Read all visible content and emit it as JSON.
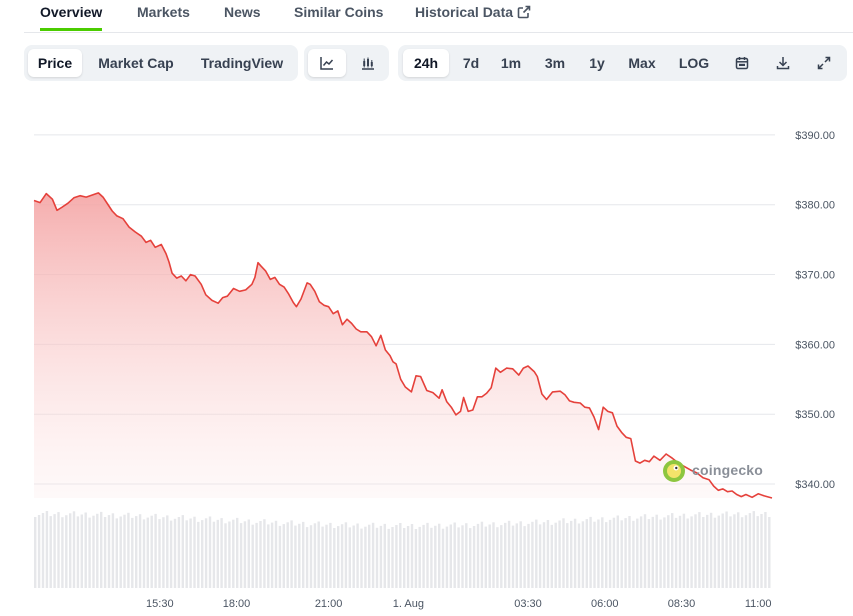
{
  "tabs": [
    {
      "label": "Overview",
      "active": true
    },
    {
      "label": "Markets"
    },
    {
      "label": "News"
    },
    {
      "label": "Similar Coins"
    },
    {
      "label": "Historical Data",
      "icon": "external-link-icon"
    }
  ],
  "toolbar": {
    "view_modes": [
      "Price",
      "Market Cap",
      "TradingView"
    ],
    "chart_types": [
      {
        "icon": "line-chart-icon",
        "active": true
      },
      {
        "icon": "candlestick-chart-icon"
      }
    ],
    "ranges": [
      "24h",
      "7d",
      "1m",
      "3m",
      "1y",
      "Max",
      "LOG"
    ],
    "actions": [
      {
        "icon": "calendar-icon"
      },
      {
        "icon": "download-icon"
      },
      {
        "icon": "expand-icon"
      }
    ]
  },
  "watermark": "coingecko",
  "colors": {
    "line": "#e5413b",
    "fill_top": "#f4a4a4",
    "volume": "#e6e7ea",
    "accent_tab": "#4bcc00"
  },
  "chart_data": {
    "type": "area",
    "ylim": [
      338,
      395
    ],
    "y_ticks": [
      340,
      350,
      360,
      370,
      380,
      390
    ],
    "y_tick_labels": [
      "$340.00",
      "$350.00",
      "$360.00",
      "$370.00",
      "$380.00",
      "$390.00"
    ],
    "x_ticks": [
      {
        "t": 15.5,
        "label": "15:30"
      },
      {
        "t": 18,
        "label": "18:00"
      },
      {
        "t": 21,
        "label": "21:00"
      },
      {
        "t": 23.6,
        "label": "1. Aug"
      },
      {
        "t": 27.5,
        "label": "03:30"
      },
      {
        "t": 30,
        "label": "06:00"
      },
      {
        "t": 32.5,
        "label": "08:30"
      },
      {
        "t": 35,
        "label": "11:00"
      }
    ],
    "t_range": [
      11.4,
      35.45
    ],
    "series": [
      {
        "values": [
          [
            11.4,
            380.6
          ],
          [
            11.6,
            380.3
          ],
          [
            11.8,
            381.6
          ],
          [
            12.0,
            380.8
          ],
          [
            12.15,
            379.2
          ],
          [
            12.3,
            379.6
          ],
          [
            12.5,
            380.2
          ],
          [
            12.7,
            381.0
          ],
          [
            12.9,
            381.3
          ],
          [
            13.1,
            381.1
          ],
          [
            13.3,
            381.4
          ],
          [
            13.5,
            381.7
          ],
          [
            13.65,
            381.1
          ],
          [
            13.8,
            380.1
          ],
          [
            13.95,
            379.1
          ],
          [
            14.1,
            378.4
          ],
          [
            14.3,
            378.0
          ],
          [
            14.5,
            376.8
          ],
          [
            14.7,
            376.1
          ],
          [
            14.9,
            375.5
          ],
          [
            15.05,
            374.6
          ],
          [
            15.2,
            374.9
          ],
          [
            15.35,
            373.9
          ],
          [
            15.55,
            374.3
          ],
          [
            15.7,
            373.0
          ],
          [
            15.8,
            371.8
          ],
          [
            15.9,
            370.2
          ],
          [
            16.05,
            369.5
          ],
          [
            16.2,
            369.8
          ],
          [
            16.35,
            369.1
          ],
          [
            16.5,
            370.0
          ],
          [
            16.65,
            369.8
          ],
          [
            16.85,
            368.6
          ],
          [
            17.0,
            367.1
          ],
          [
            17.2,
            366.3
          ],
          [
            17.4,
            365.9
          ],
          [
            17.55,
            366.7
          ],
          [
            17.7,
            366.9
          ],
          [
            17.9,
            368.0
          ],
          [
            18.1,
            367.6
          ],
          [
            18.3,
            367.8
          ],
          [
            18.5,
            368.6
          ],
          [
            18.6,
            369.6
          ],
          [
            18.7,
            371.7
          ],
          [
            18.8,
            371.2
          ],
          [
            18.95,
            370.5
          ],
          [
            19.1,
            369.3
          ],
          [
            19.25,
            369.6
          ],
          [
            19.4,
            368.6
          ],
          [
            19.55,
            368.2
          ],
          [
            19.7,
            367.2
          ],
          [
            19.85,
            366.0
          ],
          [
            19.95,
            365.4
          ],
          [
            20.1,
            366.5
          ],
          [
            20.3,
            368.8
          ],
          [
            20.4,
            368.6
          ],
          [
            20.55,
            367.6
          ],
          [
            20.7,
            366.1
          ],
          [
            20.85,
            365.6
          ],
          [
            21.0,
            365.4
          ],
          [
            21.15,
            364.4
          ],
          [
            21.3,
            364.8
          ],
          [
            21.45,
            362.8
          ],
          [
            21.6,
            363.6
          ],
          [
            21.75,
            363.0
          ],
          [
            21.9,
            362.2
          ],
          [
            22.05,
            361.8
          ],
          [
            22.25,
            361.8
          ],
          [
            22.4,
            361.1
          ],
          [
            22.55,
            359.8
          ],
          [
            22.7,
            361.3
          ],
          [
            22.85,
            359.2
          ],
          [
            23.0,
            358.4
          ],
          [
            23.1,
            357.5
          ],
          [
            23.2,
            357.2
          ],
          [
            23.35,
            355.0
          ],
          [
            23.5,
            353.9
          ],
          [
            23.7,
            353.2
          ],
          [
            23.85,
            355.5
          ],
          [
            24.0,
            355.4
          ],
          [
            24.2,
            353.4
          ],
          [
            24.4,
            353.1
          ],
          [
            24.6,
            352.3
          ],
          [
            24.7,
            353.5
          ],
          [
            24.85,
            351.8
          ],
          [
            25.0,
            351.0
          ],
          [
            25.15,
            349.9
          ],
          [
            25.3,
            350.4
          ],
          [
            25.4,
            352.4
          ],
          [
            25.55,
            350.4
          ],
          [
            25.7,
            350.6
          ],
          [
            25.85,
            352.5
          ],
          [
            26.0,
            352.5
          ],
          [
            26.15,
            353.0
          ],
          [
            26.3,
            353.8
          ],
          [
            26.45,
            356.6
          ],
          [
            26.6,
            356.0
          ],
          [
            26.8,
            356.6
          ],
          [
            27.0,
            356.5
          ],
          [
            27.2,
            355.6
          ],
          [
            27.35,
            356.6
          ],
          [
            27.5,
            356.9
          ],
          [
            27.7,
            356.1
          ],
          [
            27.8,
            355.4
          ],
          [
            27.95,
            352.9
          ],
          [
            28.1,
            352.1
          ],
          [
            28.3,
            353.2
          ],
          [
            28.55,
            353.3
          ],
          [
            28.7,
            352.8
          ],
          [
            28.85,
            351.9
          ],
          [
            29.0,
            351.7
          ],
          [
            29.2,
            351.6
          ],
          [
            29.35,
            351.0
          ],
          [
            29.5,
            350.9
          ],
          [
            29.65,
            349.6
          ],
          [
            29.8,
            347.8
          ],
          [
            29.95,
            351.0
          ],
          [
            30.1,
            350.4
          ],
          [
            30.25,
            350.2
          ],
          [
            30.4,
            348.3
          ],
          [
            30.55,
            347.4
          ],
          [
            30.7,
            346.7
          ],
          [
            30.85,
            346.5
          ],
          [
            31.0,
            343.3
          ],
          [
            31.15,
            343.0
          ],
          [
            31.3,
            343.4
          ],
          [
            31.45,
            343.2
          ],
          [
            31.6,
            344.0
          ],
          [
            31.8,
            343.4
          ],
          [
            32.0,
            344.3
          ],
          [
            32.2,
            343.7
          ],
          [
            32.4,
            343.0
          ],
          [
            32.6,
            342.5
          ],
          [
            32.8,
            342.0
          ],
          [
            33.0,
            341.6
          ],
          [
            33.2,
            340.9
          ],
          [
            33.4,
            340.6
          ],
          [
            33.55,
            339.7
          ],
          [
            33.7,
            339.1
          ],
          [
            33.85,
            339.3
          ],
          [
            34.0,
            338.9
          ],
          [
            34.15,
            339.0
          ],
          [
            34.3,
            338.5
          ],
          [
            34.45,
            338.2
          ],
          [
            34.6,
            338.5
          ],
          [
            34.8,
            338.1
          ],
          [
            35.0,
            338.6
          ],
          [
            35.2,
            338.3
          ],
          [
            35.45,
            338.0
          ]
        ]
      }
    ],
    "volume_visible": true
  }
}
